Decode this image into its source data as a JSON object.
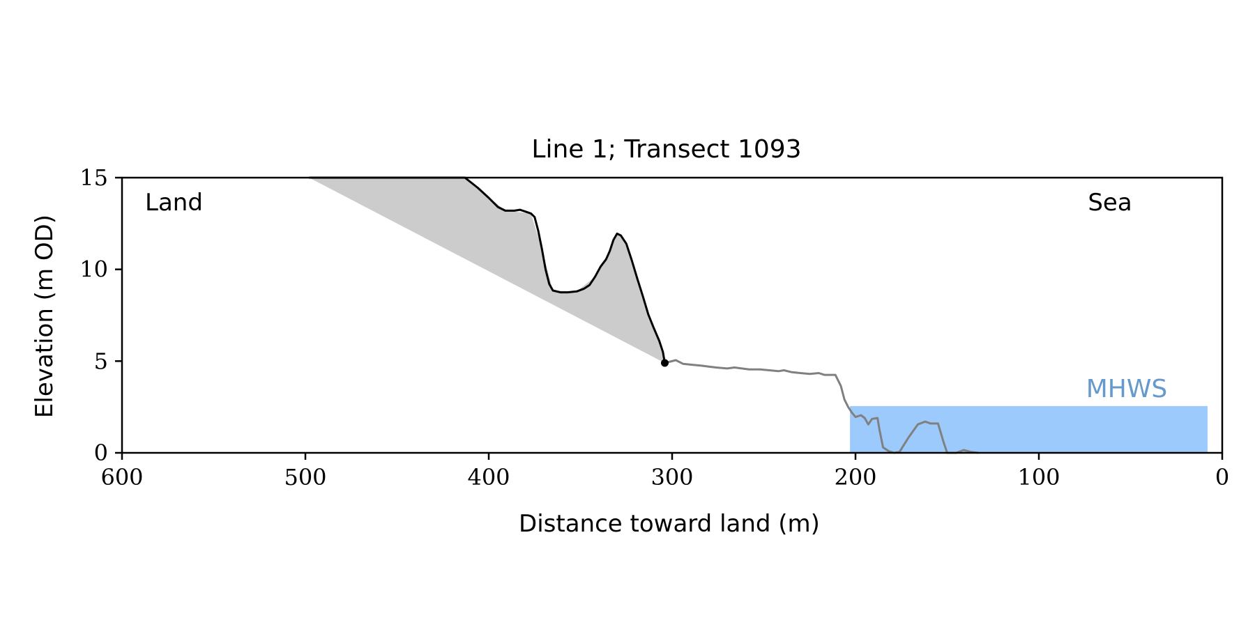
{
  "chart_data": {
    "type": "line",
    "title": "Line 1; Transect 1093",
    "xlabel": "Distance toward land (m)",
    "ylabel": "Elevation (m OD)",
    "xlim": [
      600,
      0
    ],
    "ylim": [
      0,
      15
    ],
    "x_axis_reversed": true,
    "xticks": [
      600,
      500,
      400,
      300,
      200,
      100,
      0
    ],
    "yticks": [
      0,
      5,
      10,
      15
    ],
    "grid": false,
    "annotations": {
      "land": "Land",
      "sea": "Sea",
      "mhws": "MHWS"
    },
    "colors": {
      "cliff_line": "#000000",
      "foreshore_line": "#808080",
      "shade": "#cccccc",
      "water": "#9ccafc",
      "mhws_label": "#6699cc"
    },
    "mhws": {
      "elevation": 2.55,
      "x_from": 203,
      "x_to": 8
    },
    "toe_point": {
      "x": 304,
      "y": 4.9
    },
    "series": [
      {
        "role": "cliff profile",
        "points": [
          [
            498,
            15.0
          ],
          [
            413,
            15.0
          ],
          [
            406,
            14.45
          ],
          [
            400,
            13.9
          ],
          [
            395,
            13.4
          ],
          [
            391,
            13.2
          ],
          [
            386,
            13.2
          ],
          [
            383,
            13.25
          ],
          [
            380,
            13.15
          ],
          [
            377,
            13.05
          ],
          [
            375,
            12.85
          ],
          [
            373,
            12.1
          ],
          [
            371,
            11.1
          ],
          [
            369,
            10.0
          ],
          [
            367,
            9.2
          ],
          [
            365,
            8.85
          ],
          [
            361,
            8.75
          ],
          [
            357,
            8.75
          ],
          [
            352,
            8.8
          ],
          [
            348,
            8.95
          ],
          [
            345,
            9.15
          ],
          [
            342,
            9.6
          ],
          [
            339,
            10.15
          ],
          [
            336,
            10.55
          ],
          [
            334,
            11.0
          ],
          [
            332,
            11.6
          ],
          [
            330,
            11.95
          ],
          [
            328,
            11.85
          ],
          [
            325,
            11.4
          ],
          [
            322,
            10.5
          ],
          [
            319,
            9.5
          ],
          [
            316,
            8.55
          ],
          [
            313,
            7.55
          ],
          [
            310,
            6.8
          ],
          [
            307,
            6.1
          ],
          [
            305,
            5.5
          ],
          [
            304,
            4.9
          ]
        ]
      },
      {
        "role": "foreshore profile",
        "points": [
          [
            304,
            4.9
          ],
          [
            298,
            5.05
          ],
          [
            294,
            4.85
          ],
          [
            289,
            4.8
          ],
          [
            284,
            4.75
          ],
          [
            280,
            4.7
          ],
          [
            276,
            4.65
          ],
          [
            270,
            4.6
          ],
          [
            266,
            4.65
          ],
          [
            262,
            4.6
          ],
          [
            258,
            4.55
          ],
          [
            252,
            4.55
          ],
          [
            247,
            4.5
          ],
          [
            242,
            4.45
          ],
          [
            239,
            4.5
          ],
          [
            235,
            4.4
          ],
          [
            230,
            4.35
          ],
          [
            225,
            4.3
          ],
          [
            220,
            4.35
          ],
          [
            217,
            4.25
          ],
          [
            211,
            4.25
          ],
          [
            208,
            3.65
          ],
          [
            206,
            2.9
          ],
          [
            204,
            2.5
          ],
          [
            202,
            2.2
          ],
          [
            200,
            1.95
          ],
          [
            197,
            2.05
          ],
          [
            195,
            1.9
          ],
          [
            193,
            1.55
          ],
          [
            191,
            1.85
          ],
          [
            188,
            1.9
          ],
          [
            187,
            1.3
          ],
          [
            185,
            0.3
          ],
          [
            182,
            0.1
          ],
          [
            179,
            0.0
          ],
          [
            176,
            0.05
          ],
          [
            171,
            0.85
          ],
          [
            166,
            1.55
          ],
          [
            162,
            1.7
          ],
          [
            159,
            1.6
          ],
          [
            155,
            1.6
          ],
          [
            152,
            0.6
          ],
          [
            150,
            0.0
          ],
          [
            145,
            0.0
          ],
          [
            141,
            0.15
          ],
          [
            137,
            0.05
          ],
          [
            133,
            0.0
          ]
        ]
      },
      {
        "role": "shaded area",
        "points": [
          [
            498,
            15.0
          ],
          [
            413,
            15.0
          ],
          [
            391,
            13.2
          ],
          [
            377,
            13.05
          ],
          [
            371,
            11.1
          ],
          [
            365,
            8.85
          ],
          [
            352,
            8.8
          ],
          [
            342,
            9.6
          ],
          [
            334,
            11.0
          ],
          [
            330,
            11.95
          ],
          [
            325,
            11.4
          ],
          [
            319,
            9.5
          ],
          [
            313,
            7.55
          ],
          [
            307,
            6.1
          ],
          [
            304,
            4.9
          ]
        ]
      }
    ]
  }
}
